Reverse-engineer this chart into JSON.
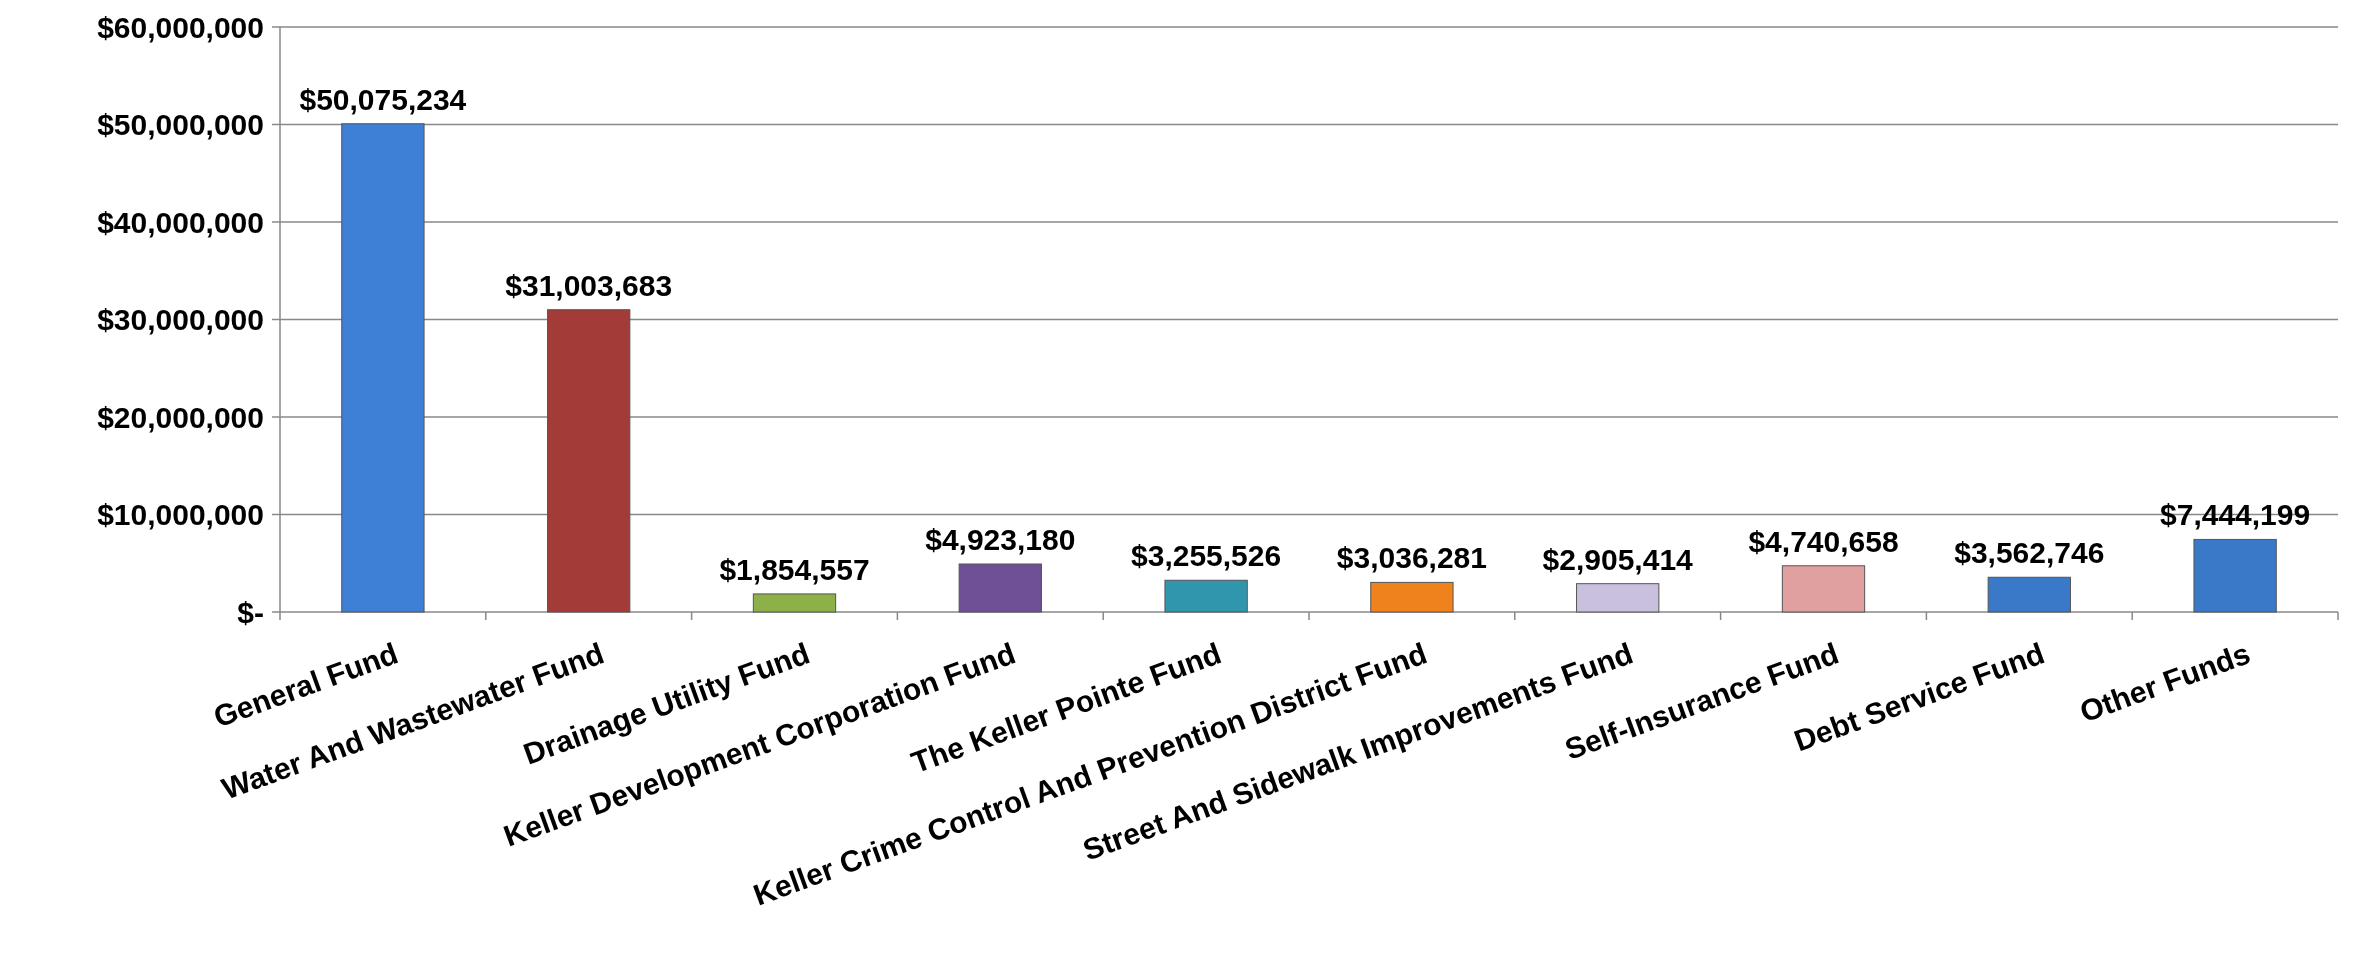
{
  "chart_data": {
    "type": "bar",
    "categories": [
      "General Fund",
      "Water And Wastewater Fund",
      "Drainage Utility Fund",
      "Keller Development Corporation Fund",
      "The Keller Pointe Fund",
      "Keller Crime Control And Prevention District Fund",
      "Street And Sidewalk Improvements Fund",
      "Self-Insurance Fund",
      "Debt Service Fund",
      "Other Funds"
    ],
    "values": [
      50075234,
      31003683,
      1854557,
      4923180,
      3255526,
      3036281,
      2905414,
      4740658,
      3562746,
      7444199
    ],
    "colors": [
      "#3d80d6",
      "#a33b38",
      "#8db048",
      "#6f4f95",
      "#2f96ad",
      "#f0821e",
      "#c9c0dd",
      "#e0a0a0",
      "#3a78c8",
      "#3a78c8"
    ],
    "value_labels": [
      "$50,075,234",
      "$31,003,683",
      "$1,854,557",
      "$4,923,180",
      "$3,255,526",
      "$3,036,281",
      "$2,905,414",
      "$4,740,658",
      "$3,562,746",
      "$7,444,199"
    ],
    "ylim": [
      0,
      60000000
    ],
    "yticks": [
      {
        "value": 0,
        "label": "$-"
      },
      {
        "value": 10000000,
        "label": "$10,000,000"
      },
      {
        "value": 20000000,
        "label": "$20,000,000"
      },
      {
        "value": 30000000,
        "label": "$30,000,000"
      },
      {
        "value": 40000000,
        "label": "$40,000,000"
      },
      {
        "value": 50000000,
        "label": "$50,000,000"
      },
      {
        "value": 60000000,
        "label": "$60,000,000"
      }
    ],
    "grid": "y"
  }
}
